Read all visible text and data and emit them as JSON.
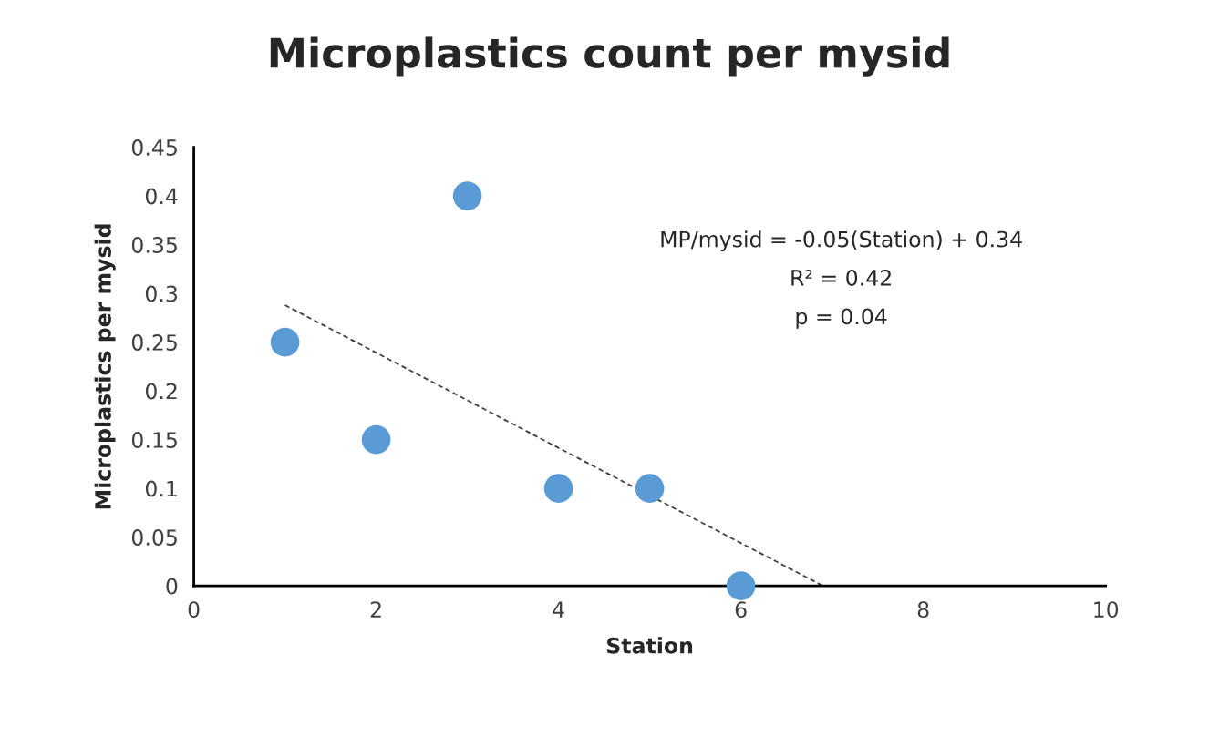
{
  "chart_data": {
    "type": "scatter",
    "title": "Microplastics count per mysid",
    "xlabel": "Station",
    "ylabel": "Microplastics per mysid",
    "series": [
      {
        "color": "#5b9bd5",
        "x": [
          1,
          2,
          3,
          4,
          5,
          6
        ],
        "values": [
          0.25,
          0.15,
          0.4,
          0.1,
          0.1,
          0
        ],
        "marker": "circle"
      },
      {
        "type": "line",
        "color": "#404040",
        "x": [
          1,
          6.9
        ],
        "values": [
          0.288,
          0
        ],
        "line_style": "dashed",
        "marker": "none"
      }
    ],
    "annotations": [
      "MP/mysid = -0.05(Station) + 0.34",
      "R² = 0.42",
      "p = 0.04"
    ],
    "xlim": [
      0,
      10
    ],
    "xticks": [
      0,
      2,
      4,
      6,
      8,
      10
    ],
    "ylim": [
      0,
      0.45
    ],
    "yticks": [
      0,
      0.05,
      0.1,
      0.15,
      0.2,
      0.25,
      0.3,
      0.35,
      0.4,
      0.45
    ],
    "grid": false,
    "legend": false
  }
}
